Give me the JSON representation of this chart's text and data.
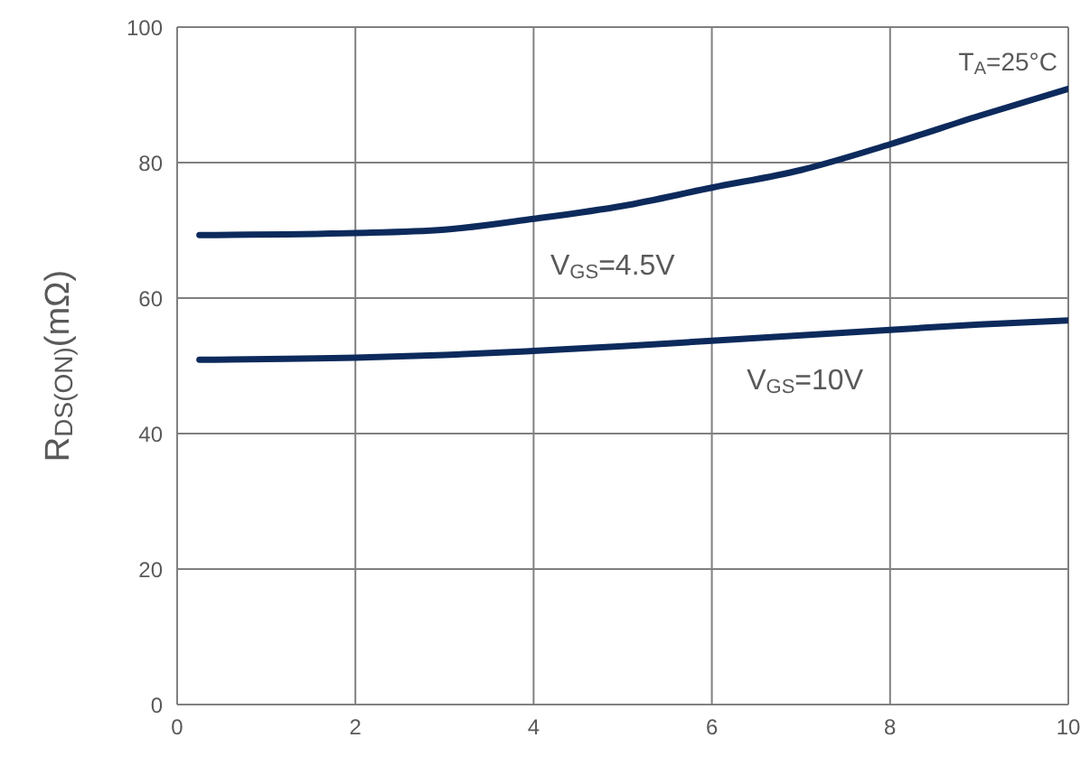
{
  "chart_data": {
    "type": "line",
    "ylabel": "R$_{DS(ON)}$(mΩ)",
    "x": [
      0.25,
      2,
      3,
      4,
      5,
      6,
      7,
      8,
      9,
      10
    ],
    "series": [
      {
        "name": "V$_{GS}$=4.5V",
        "color": "#0d2a5c",
        "values": [
          69.3,
          69.6,
          70.1,
          71.7,
          73.6,
          76.3,
          78.9,
          82.7,
          86.9,
          90.9
        ]
      },
      {
        "name": "V$_{GS}$=10V",
        "color": "#0d2a5c",
        "values": [
          50.9,
          51.2,
          51.6,
          52.2,
          52.9,
          53.7,
          54.5,
          55.3,
          56.1,
          56.7
        ]
      }
    ],
    "xlim": [
      0,
      10
    ],
    "xticks": [
      0,
      2,
      4,
      6,
      8,
      10
    ],
    "ylim": [
      0,
      100
    ],
    "yticks": [
      0,
      20,
      40,
      60,
      80,
      100
    ],
    "grid": true,
    "marker": "none",
    "line_style": "solid",
    "annotations": [
      "T$_{A}$=25°C"
    ]
  }
}
